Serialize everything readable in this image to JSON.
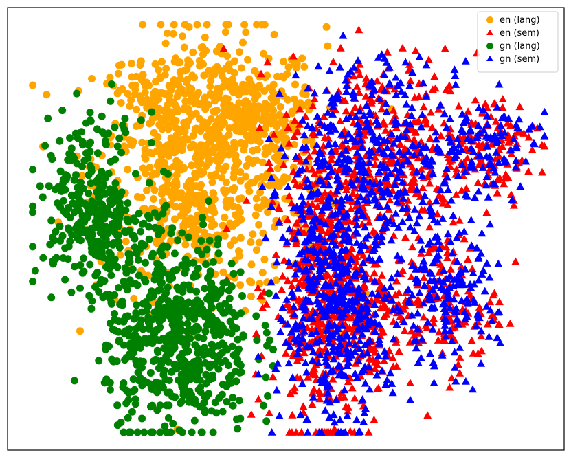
{
  "chart_data": {
    "type": "scatter",
    "title": "",
    "xlabel": "",
    "ylabel": "",
    "xlim": [
      0,
      100
    ],
    "ylim": [
      0,
      100
    ],
    "grid": false,
    "axes_ticks": false,
    "legend_position": "top-right",
    "series": [
      {
        "name": "en (lang)",
        "marker": "circle",
        "color": "#FFA500",
        "regions": [
          {
            "cx": 35,
            "cy": 66,
            "sx": 11,
            "sy": 16,
            "n": 700
          },
          {
            "cx": 42,
            "cy": 78,
            "sx": 5,
            "sy": 6,
            "n": 180
          },
          {
            "cx": 25,
            "cy": 80,
            "sx": 4,
            "sy": 6,
            "n": 90
          },
          {
            "cx": 29,
            "cy": 55,
            "sx": 4,
            "sy": 6,
            "n": 80
          }
        ]
      },
      {
        "name": "en (sem)",
        "marker": "triangle",
        "color": "#FF0000",
        "regions": [
          {
            "cx": 57,
            "cy": 35,
            "sx": 5,
            "sy": 17,
            "n": 450
          },
          {
            "cx": 68,
            "cy": 68,
            "sx": 9,
            "sy": 12,
            "n": 400
          },
          {
            "cx": 88,
            "cy": 70,
            "sx": 5,
            "sy": 6,
            "n": 100
          },
          {
            "cx": 80,
            "cy": 32,
            "sx": 5,
            "sy": 8,
            "n": 130
          },
          {
            "cx": 63,
            "cy": 28,
            "sx": 6,
            "sy": 9,
            "n": 160
          }
        ]
      },
      {
        "name": "gn (lang)",
        "marker": "circle",
        "color": "#008000",
        "regions": [
          {
            "cx": 29,
            "cy": 24,
            "sx": 7,
            "sy": 12,
            "n": 620
          },
          {
            "cx": 12,
            "cy": 57,
            "sx": 5,
            "sy": 10,
            "n": 260
          },
          {
            "cx": 16,
            "cy": 46,
            "sx": 4,
            "sy": 5,
            "n": 80
          }
        ]
      },
      {
        "name": "gn (sem)",
        "marker": "triangle",
        "color": "#0000FF",
        "regions": [
          {
            "cx": 58,
            "cy": 35,
            "sx": 5,
            "sy": 17,
            "n": 380
          },
          {
            "cx": 68,
            "cy": 68,
            "sx": 9,
            "sy": 12,
            "n": 360
          },
          {
            "cx": 88,
            "cy": 70,
            "sx": 5,
            "sy": 6,
            "n": 90
          },
          {
            "cx": 80,
            "cy": 32,
            "sx": 5,
            "sy": 8,
            "n": 150
          },
          {
            "cx": 62,
            "cy": 27,
            "sx": 6,
            "sy": 9,
            "n": 140
          }
        ]
      }
    ]
  }
}
